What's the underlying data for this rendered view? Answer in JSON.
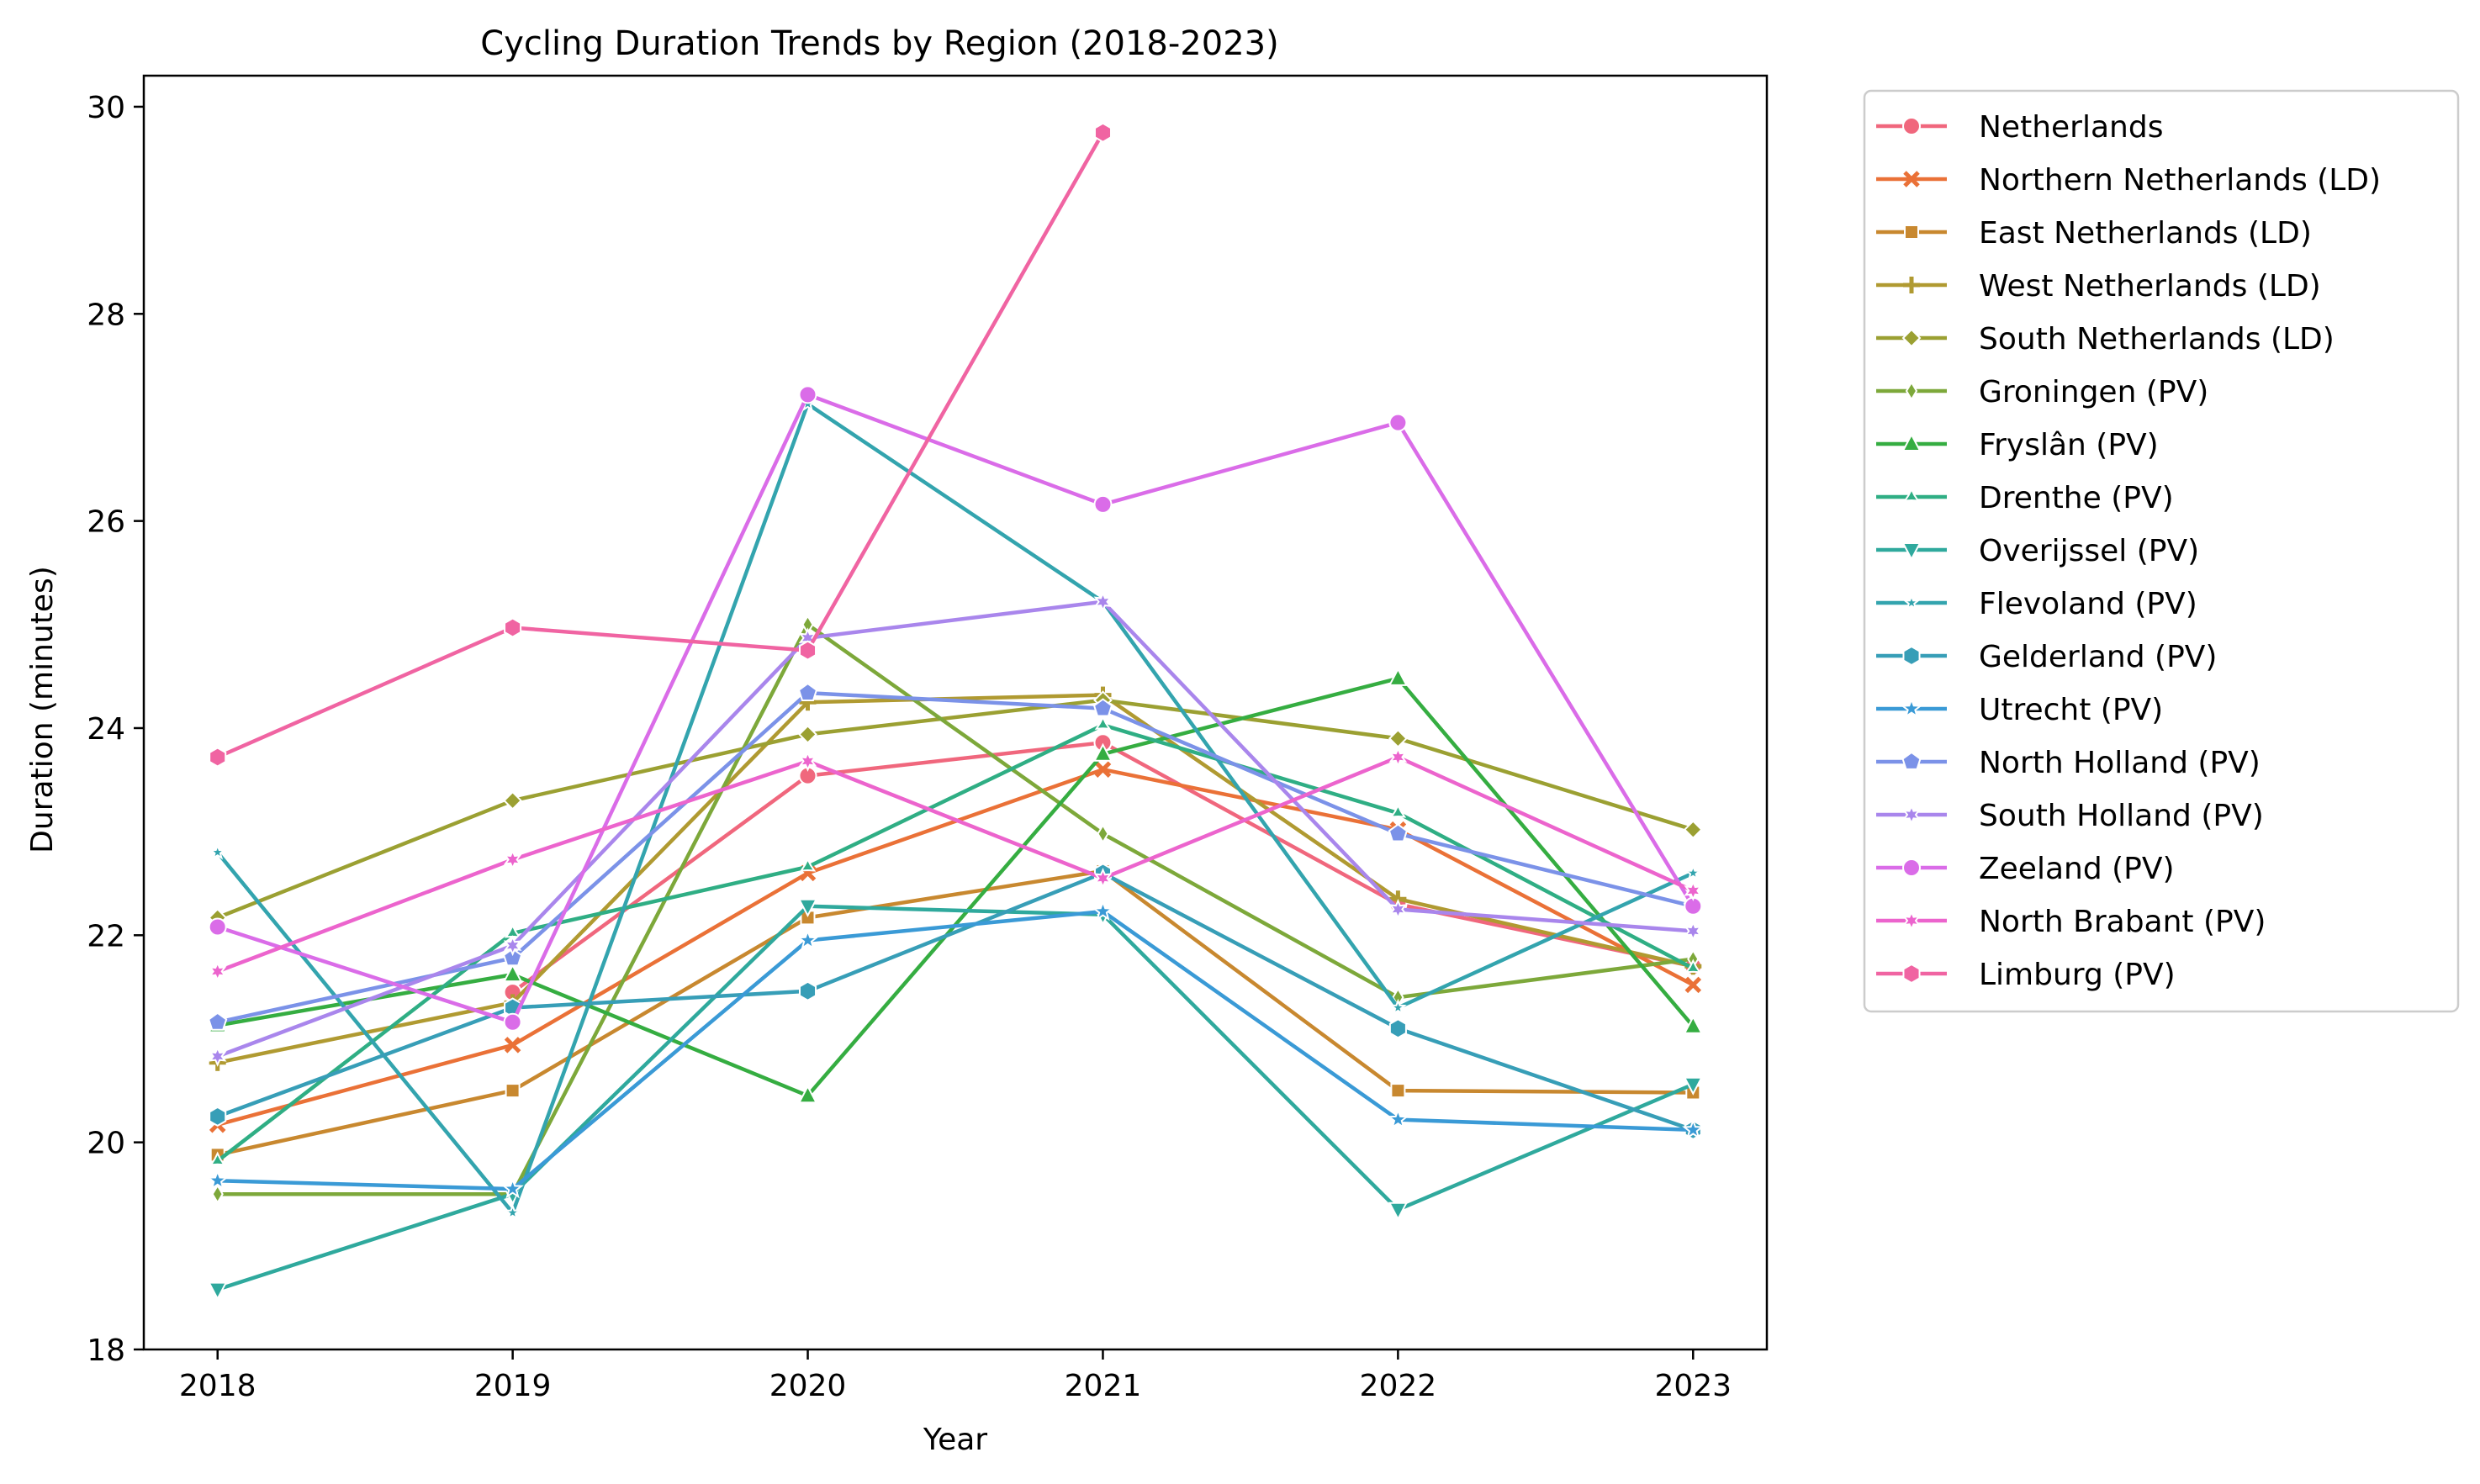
{
  "chart_data": {
    "type": "line",
    "title": "Cycling Duration Trends by Region (2018-2023)",
    "xlabel": "Year",
    "ylabel": "Duration (minutes)",
    "x": [
      2018,
      2019,
      2020,
      2021,
      2022,
      2023
    ],
    "xlim": [
      2017.75,
      2023.25
    ],
    "ylim": [
      18,
      30.3
    ],
    "yticks": [
      18,
      20,
      22,
      24,
      26,
      28,
      30
    ],
    "grid": false,
    "legend_position": "outside-right",
    "series": [
      {
        "name": "Netherlands",
        "color": "#f0677d",
        "marker": "circle",
        "values": [
          null,
          21.45,
          23.54,
          23.86,
          22.3,
          21.7
        ]
      },
      {
        "name": "Northern Netherlands (LD)",
        "color": "#ea7137",
        "marker": "x",
        "values": [
          20.17,
          20.94,
          22.6,
          23.6,
          23.02,
          21.52
        ]
      },
      {
        "name": "East Netherlands (LD)",
        "color": "#c8882f",
        "marker": "square",
        "values": [
          19.88,
          20.5,
          22.17,
          22.62,
          20.5,
          20.48
        ]
      },
      {
        "name": "West Netherlands (LD)",
        "color": "#b09a31",
        "marker": "plus",
        "values": [
          20.77,
          21.35,
          24.25,
          24.32,
          22.35,
          21.7
        ]
      },
      {
        "name": "South Netherlands (LD)",
        "color": "#9ba032",
        "marker": "diamond",
        "values": [
          22.17,
          23.3,
          23.94,
          24.27,
          23.9,
          23.02
        ]
      },
      {
        "name": "Groningen (PV)",
        "color": "#7da83a",
        "marker": "thin-diamond",
        "values": [
          19.5,
          19.5,
          25.0,
          22.98,
          21.4,
          21.77
        ]
      },
      {
        "name": "Fryslân (PV)",
        "color": "#35ad41",
        "marker": "triangle-up",
        "values": [
          21.13,
          21.62,
          20.45,
          23.75,
          24.48,
          21.12
        ]
      },
      {
        "name": "Drenthe (PV)",
        "color": "#2fae84",
        "marker": "tri",
        "values": [
          19.82,
          22.02,
          22.66,
          24.03,
          23.18,
          21.68
        ]
      },
      {
        "name": "Overijssel (PV)",
        "color": "#2fa99d",
        "marker": "triangle-down",
        "values": [
          18.58,
          19.5,
          22.28,
          22.2,
          19.35,
          20.56
        ]
      },
      {
        "name": "Flevoland (PV)",
        "color": "#33a4ae",
        "marker": "star-small",
        "values": [
          22.8,
          19.32,
          27.13,
          25.22,
          21.3,
          22.6
        ]
      },
      {
        "name": "Gelderland (PV)",
        "color": "#379eb7",
        "marker": "hexagon",
        "values": [
          20.25,
          21.3,
          21.46,
          22.6,
          21.1,
          20.12
        ]
      },
      {
        "name": "Utrecht (PV)",
        "color": "#3a9ad6",
        "marker": "star",
        "values": [
          19.63,
          19.55,
          21.95,
          22.23,
          20.22,
          20.12
        ]
      },
      {
        "name": "North Holland (PV)",
        "color": "#7b92e8",
        "marker": "pentagon",
        "values": [
          21.16,
          21.78,
          24.34,
          24.19,
          22.98,
          22.28
        ]
      },
      {
        "name": "South Holland (PV)",
        "color": "#a986ec",
        "marker": "star6",
        "values": [
          20.83,
          21.9,
          24.87,
          25.22,
          22.25,
          22.04
        ]
      },
      {
        "name": "Zeeland (PV)",
        "color": "#da6ce8",
        "marker": "circle",
        "values": [
          22.08,
          21.16,
          27.22,
          26.16,
          26.95,
          22.28
        ]
      },
      {
        "name": "North Brabant (PV)",
        "color": "#ec64cd",
        "marker": "star6",
        "values": [
          21.65,
          22.73,
          23.68,
          22.55,
          23.72,
          22.43
        ]
      },
      {
        "name": "Limburg (PV)",
        "color": "#f064a2",
        "marker": "hexagon",
        "values": [
          23.72,
          24.97,
          24.75,
          29.75,
          null,
          null
        ]
      }
    ]
  }
}
